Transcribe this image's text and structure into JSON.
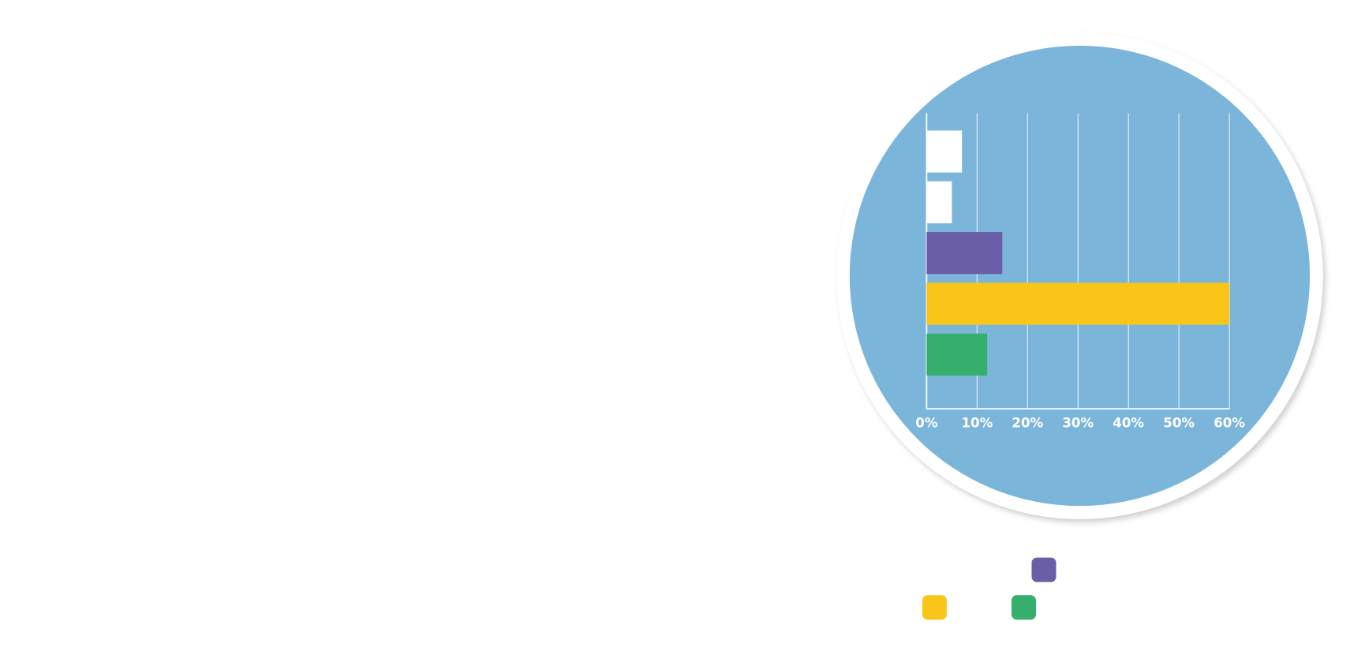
{
  "chart_data": {
    "type": "bar",
    "orientation": "horizontal",
    "categories": [
      null,
      null,
      null,
      null,
      null
    ],
    "values": [
      7,
      5,
      15,
      60,
      12
    ],
    "colors": [
      "#ffffff",
      "#ffffff",
      "#6b5ea8",
      "#f9c518",
      "#36ae6c"
    ],
    "xlim": [
      0,
      60
    ],
    "xticks": [
      {
        "value": 0,
        "label": "0%"
      },
      {
        "value": 10,
        "label": "10%"
      },
      {
        "value": 20,
        "label": "20%"
      },
      {
        "value": 30,
        "label": "30%"
      },
      {
        "value": 40,
        "label": "40%"
      },
      {
        "value": 50,
        "label": "50%"
      },
      {
        "value": 60,
        "label": "60%"
      }
    ],
    "grid": true
  }
}
